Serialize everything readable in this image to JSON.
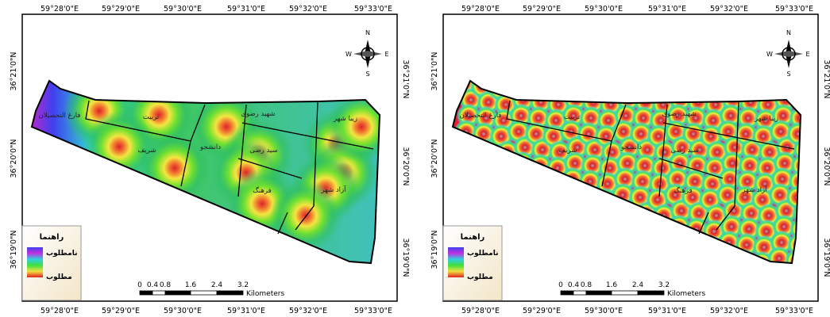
{
  "maps": [
    {
      "top_labels": [
        "59°28'0\"E",
        "59°29'0\"E",
        "59°30'0\"E",
        "59°31'0\"E",
        "59°32'0\"E",
        "59°33'0\"E"
      ],
      "bottom_labels": [
        "59°28'0\"E",
        "59°29'0\"E",
        "59°30'0\"E",
        "59°31'0\"E",
        "59°32'0\"E",
        "59°33'0\"E"
      ],
      "left_labels": [
        "36°21'0\"N",
        "36°20'0\"N",
        "36°19'0\"N"
      ],
      "right_labels": [
        "36°21'0\"N",
        "36°20'0\"N",
        "36°19'0\"N"
      ],
      "districts": [
        "فارغ التحصیلان",
        "تربیت",
        "شریف",
        "دانشجو",
        "شهید رضوی",
        "سید رضی",
        "فرهنگ",
        "زیبا شهر",
        "آزاد شهر"
      ],
      "legend": {
        "title": "راهنما",
        "high": "نامطلوب",
        "low": "مطلوب"
      },
      "scale": {
        "ticks": [
          "0",
          "0.4",
          "0.8",
          "1.6",
          "2.4",
          "3.2"
        ],
        "unit": "Kilometers"
      },
      "north": {
        "n": "N",
        "s": "S",
        "e": "E",
        "w": "W"
      }
    },
    {
      "top_labels": [
        "59°28'0\"E",
        "59°29'0\"E",
        "59°30'0\"E",
        "59°31'0\"E",
        "59°32'0\"E",
        "59°33'0\"E"
      ],
      "bottom_labels": [
        "59°28'0\"E",
        "59°29'0\"E",
        "59°30'0\"E",
        "59°31'0\"E",
        "59°32'0\"E",
        "59°33'0\"E"
      ],
      "left_labels": [
        "36°21'0\"N",
        "36°20'0\"N",
        "36°19'0\"N"
      ],
      "right_labels": [
        "36°21'0\"N",
        "36°20'0\"N",
        "36°19'0\"N"
      ],
      "districts": [
        "فارغ التحصیلان",
        "تربیت",
        "شریف",
        "دانشجو",
        "شهید رضوی",
        "سید رضی",
        "فرهنگ",
        "زیبا شهر",
        "آزاد شهر"
      ],
      "legend": {
        "title": "راهنما",
        "high": "نامطلوب",
        "low": "مطلوب"
      },
      "scale": {
        "ticks": [
          "0",
          "0.4",
          "0.8",
          "1.6",
          "2.4",
          "3.2"
        ],
        "unit": "Kilometers"
      },
      "north": {
        "n": "N",
        "s": "S",
        "e": "E",
        "w": "W"
      }
    }
  ]
}
